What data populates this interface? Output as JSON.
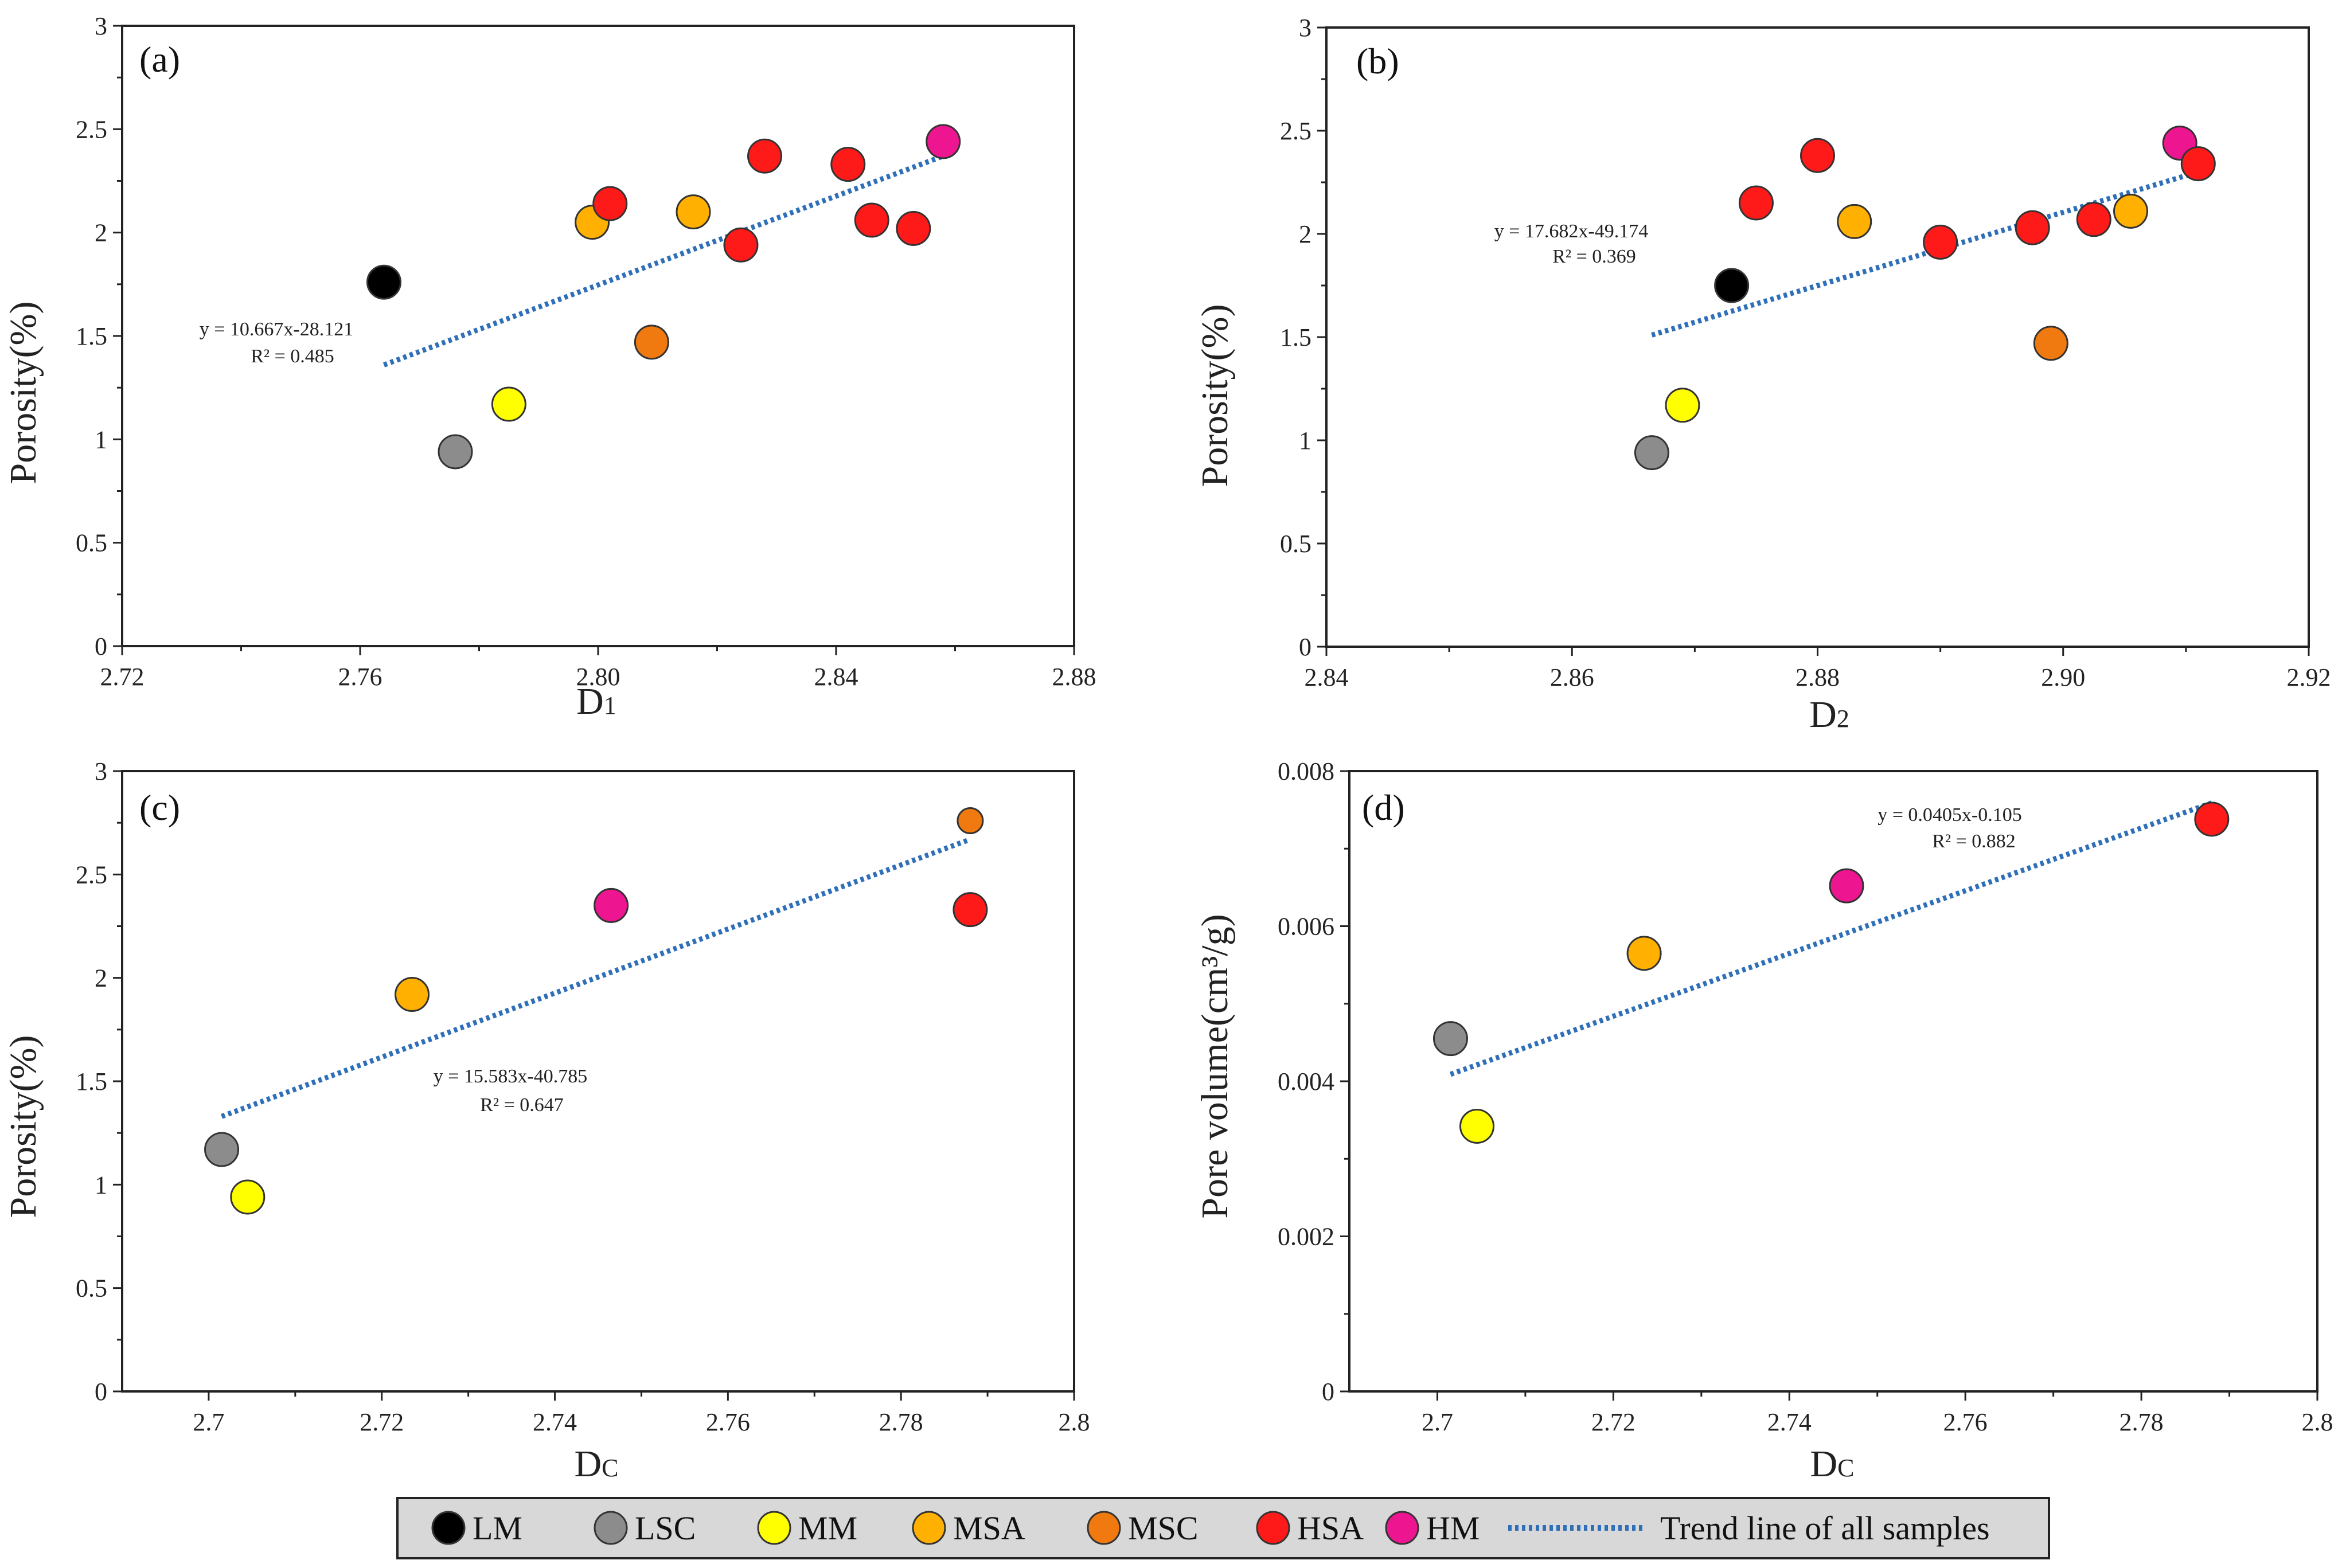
{
  "chart_data": [
    {
      "type": "scatter",
      "panel": "(a)",
      "xlabel": "D",
      "xlabel_sub": "1",
      "ylabel": "Porosity(%)",
      "xlim": [
        2.72,
        2.88
      ],
      "ylim": [
        0,
        3
      ],
      "xticks": [
        "2.72",
        "2.76",
        "2.80",
        "2.84",
        "2.88"
      ],
      "yticks": [
        "0",
        "0.5",
        "1",
        "1.5",
        "2",
        "2.5",
        "3"
      ],
      "points": [
        {
          "group": "LM",
          "x": 2.764,
          "y": 1.76
        },
        {
          "group": "LSC",
          "x": 2.776,
          "y": 0.94
        },
        {
          "group": "MM",
          "x": 2.785,
          "y": 1.17
        },
        {
          "group": "MSA",
          "x": 2.799,
          "y": 2.05
        },
        {
          "group": "HSA",
          "x": 2.802,
          "y": 2.14
        },
        {
          "group": "MSC",
          "x": 2.809,
          "y": 1.47
        },
        {
          "group": "MSA",
          "x": 2.816,
          "y": 2.1
        },
        {
          "group": "HSA",
          "x": 2.824,
          "y": 1.94
        },
        {
          "group": "HSA",
          "x": 2.828,
          "y": 2.37
        },
        {
          "group": "HSA",
          "x": 2.842,
          "y": 2.33
        },
        {
          "group": "HSA",
          "x": 2.846,
          "y": 2.06
        },
        {
          "group": "HSA",
          "x": 2.853,
          "y": 2.02
        },
        {
          "group": "HM",
          "x": 2.858,
          "y": 2.44
        }
      ],
      "trend": {
        "x": [
          2.764,
          2.858
        ],
        "y": [
          1.36,
          2.37
        ]
      },
      "equation": "y = 10.667x-28.121",
      "r2": "R² = 0.485"
    },
    {
      "type": "scatter",
      "panel": "(b)",
      "xlabel": "D",
      "xlabel_sub": "2",
      "ylabel": "Porosity(%)",
      "xlim": [
        2.84,
        2.92
      ],
      "ylim": [
        0,
        3
      ],
      "xticks": [
        "2.84",
        "2.86",
        "2.88",
        "2.90",
        "2.92"
      ],
      "yticks": [
        "0",
        "0.5",
        "1",
        "1.5",
        "2",
        "2.5",
        "3"
      ],
      "points": [
        {
          "group": "LSC",
          "x": 2.8665,
          "y": 0.94
        },
        {
          "group": "MM",
          "x": 2.869,
          "y": 1.17
        },
        {
          "group": "LM",
          "x": 2.873,
          "y": 1.75
        },
        {
          "group": "HSA",
          "x": 2.875,
          "y": 2.15
        },
        {
          "group": "HSA",
          "x": 2.88,
          "y": 2.38
        },
        {
          "group": "MSA",
          "x": 2.883,
          "y": 2.06
        },
        {
          "group": "HSA",
          "x": 2.89,
          "y": 1.96
        },
        {
          "group": "HSA",
          "x": 2.8975,
          "y": 2.03
        },
        {
          "group": "MSC",
          "x": 2.899,
          "y": 1.47
        },
        {
          "group": "HSA",
          "x": 2.9025,
          "y": 2.07
        },
        {
          "group": "MSA",
          "x": 2.9055,
          "y": 2.11
        },
        {
          "group": "HM",
          "x": 2.9095,
          "y": 2.44
        },
        {
          "group": "HSA",
          "x": 2.911,
          "y": 2.34
        }
      ],
      "trend": {
        "x": [
          2.8665,
          2.911
        ],
        "y": [
          1.51,
          2.3
        ]
      },
      "equation": "y = 17.682x-49.174",
      "r2": "R² = 0.369"
    },
    {
      "type": "scatter",
      "panel": "(c)",
      "xlabel": "D",
      "xlabel_sub": "C",
      "ylabel": "Porosity(%)",
      "xlim": [
        2.69,
        2.8
      ],
      "ylim": [
        0,
        3
      ],
      "xticks": [
        "2.7",
        "2.72",
        "2.74",
        "2.76",
        "2.78",
        "2.8"
      ],
      "yticks": [
        "0",
        "0.5",
        "1",
        "1.5",
        "2",
        "2.5",
        "3"
      ],
      "points": [
        {
          "group": "LSC",
          "x": 2.7015,
          "y": 1.17
        },
        {
          "group": "MM",
          "x": 2.7045,
          "y": 0.94
        },
        {
          "group": "MSA",
          "x": 2.7235,
          "y": 1.92
        },
        {
          "group": "HM",
          "x": 2.7465,
          "y": 2.35
        },
        {
          "group": "HSA",
          "x": 2.788,
          "y": 2.33
        },
        {
          "group": "MSC",
          "x": 2.788,
          "y": 2.76,
          "small": true
        }
      ],
      "trend": {
        "x": [
          2.7015,
          2.788
        ],
        "y": [
          1.33,
          2.67
        ]
      },
      "equation": "y = 15.583x-40.785",
      "r2": "R² = 0.647"
    },
    {
      "type": "scatter",
      "panel": "(d)",
      "xlabel": "D",
      "xlabel_sub": "C",
      "ylabel": "Pore volume(cm³/g)",
      "xlim": [
        2.69,
        2.8
      ],
      "ylim": [
        0,
        0.008
      ],
      "xticks": [
        "2.7",
        "2.72",
        "2.74",
        "2.76",
        "2.78",
        "2.8"
      ],
      "yticks": [
        "0",
        "0.002",
        "0.004",
        "0.006",
        "0.008"
      ],
      "points": [
        {
          "group": "LSC",
          "x": 2.7015,
          "y": 0.00455
        },
        {
          "group": "MM",
          "x": 2.7045,
          "y": 0.00342
        },
        {
          "group": "MSA",
          "x": 2.7235,
          "y": 0.00565
        },
        {
          "group": "HM",
          "x": 2.7465,
          "y": 0.00652
        },
        {
          "group": "HSA",
          "x": 2.788,
          "y": 0.00738
        }
      ],
      "trend": {
        "x": [
          2.7015,
          2.788
        ],
        "y": [
          0.00409,
          0.00759
        ]
      },
      "equation": "y = 0.0405x-0.105",
      "r2": "R² = 0.882"
    }
  ],
  "legend": {
    "items": [
      {
        "label": "LM",
        "color": "#000000"
      },
      {
        "label": "LSC",
        "color": "#8c8c8c"
      },
      {
        "label": "MM",
        "color": "#ffff00"
      },
      {
        "label": "MSA",
        "color": "#ffb000"
      },
      {
        "label": "MSC",
        "color": "#f07a10"
      },
      {
        "label": "HSA",
        "color": "#ff1a1a"
      },
      {
        "label": "HM",
        "color": "#ee1590"
      }
    ],
    "trend_label": "Trend line of all samples",
    "trend_color": "#2e6fb8"
  }
}
